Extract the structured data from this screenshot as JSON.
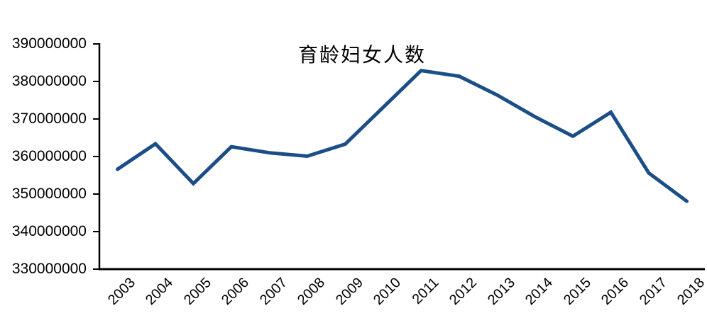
{
  "chart_data": {
    "type": "line",
    "title": "育龄妇女人数",
    "categories": [
      "2003",
      "2004",
      "2005",
      "2006",
      "2007",
      "2008",
      "2009",
      "2010",
      "2011",
      "2012",
      "2013",
      "2014",
      "2015",
      "2016",
      "2017",
      "2018"
    ],
    "series": [
      {
        "name": "育龄妇女人数",
        "values": [
          356600000,
          363400000,
          352800000,
          362600000,
          361000000,
          360100000,
          363300000,
          373100000,
          382900000,
          381400000,
          376400000,
          370600000,
          365400000,
          371800000,
          355600000,
          348100000
        ]
      }
    ],
    "xlabel": "",
    "ylabel": "",
    "ylim": [
      330000000,
      390000000
    ],
    "y_tick_step": 10000000,
    "y_tick_labels": [
      "390000000",
      "380000000",
      "370000000",
      "360000000",
      "350000000",
      "340000000",
      "330000000"
    ],
    "grid": false,
    "legend": false,
    "line_color": "#1B4E87",
    "axis_color": "#000000",
    "text_color": "#000000"
  }
}
